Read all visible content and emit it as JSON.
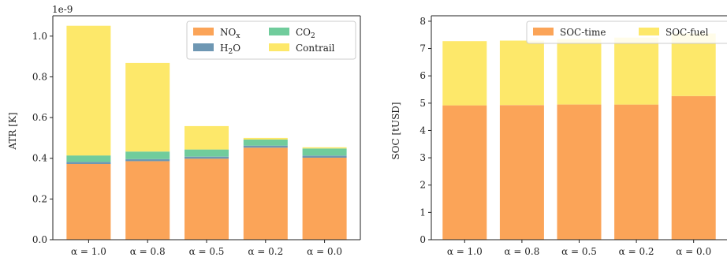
{
  "colors": {
    "nox": "#fba458",
    "h2o": "#6e97b3",
    "co2": "#70cc9c",
    "contrail": "#fde86a",
    "soc_time": "#fba458",
    "soc_fuel": "#fde86a",
    "axis": "#222222"
  },
  "chart_data": [
    {
      "type": "bar",
      "stacked": true,
      "categories": [
        "α = 1.0",
        "α = 0.8",
        "α = 0.5",
        "α = 0.2",
        "α = 0.0"
      ],
      "series": [
        {
          "name": "NOx",
          "name_base": "NO",
          "name_sub": "x",
          "color_key": "nox",
          "values": [
            0.372,
            0.386,
            0.398,
            0.452,
            0.403
          ]
        },
        {
          "name": "H2O",
          "name_base": "H",
          "name_sub": "2",
          "name_tail": "O",
          "color_key": "h2o",
          "values": [
            0.01,
            0.01,
            0.01,
            0.01,
            0.01
          ]
        },
        {
          "name": "CO2",
          "name_base": "CO",
          "name_sub": "2",
          "color_key": "co2",
          "values": [
            0.032,
            0.037,
            0.035,
            0.03,
            0.035
          ]
        },
        {
          "name": "Contrail",
          "color_key": "contrail",
          "values": [
            0.637,
            0.435,
            0.115,
            0.008,
            0.006
          ]
        }
      ],
      "ylabel": "ATR [K]",
      "xlabel": "",
      "y_offset_label": "1e-9",
      "ylim": [
        0,
        1.1
      ],
      "yticks": [
        0.0,
        0.2,
        0.4,
        0.6,
        0.8,
        1.0
      ],
      "ytick_labels": [
        "0.0",
        "0.2",
        "0.4",
        "0.6",
        "0.8",
        "1.0"
      ],
      "legend": {
        "placement": "top-right",
        "columns": 2,
        "order": [
          "NOx",
          "CO2",
          "H2O",
          "Contrail"
        ]
      },
      "grid": false
    },
    {
      "type": "bar",
      "stacked": true,
      "categories": [
        "α = 1.0",
        "α = 0.8",
        "α = 0.5",
        "α = 0.2",
        "α = 0.0"
      ],
      "series": [
        {
          "name": "SOC-time",
          "color_key": "soc_time",
          "values": [
            4.92,
            4.93,
            4.95,
            4.95,
            5.26
          ]
        },
        {
          "name": "SOC-fuel",
          "color_key": "soc_fuel",
          "values": [
            2.35,
            2.36,
            2.4,
            2.45,
            2.29
          ]
        }
      ],
      "ylabel": "SOC [tUSD]",
      "xlabel": "",
      "ylim": [
        0,
        8.2
      ],
      "yticks": [
        0,
        1,
        2,
        3,
        4,
        5,
        6,
        7,
        8
      ],
      "ytick_labels": [
        "0",
        "1",
        "2",
        "3",
        "4",
        "5",
        "6",
        "7",
        "8"
      ],
      "legend": {
        "placement": "top-right",
        "columns": 2,
        "order": [
          "SOC-time",
          "SOC-fuel"
        ]
      },
      "grid": false
    }
  ]
}
